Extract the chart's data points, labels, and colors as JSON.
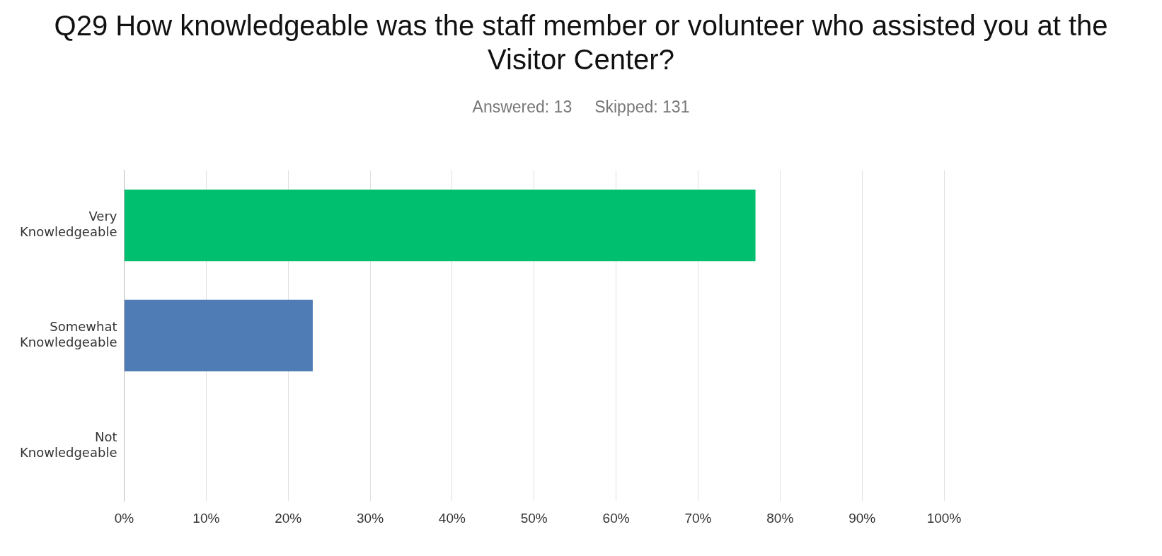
{
  "chart_data": {
    "type": "bar",
    "orientation": "horizontal",
    "title": "Q29 How knowledgeable was the staff member or volunteer who assisted you at the Visitor Center?",
    "subtitle": "Answered: 13     Skipped: 131",
    "categories": [
      "Very Knowledgeable",
      "Somewhat Knowledgeable",
      "Not Knowledgeable"
    ],
    "values": [
      77,
      23,
      0
    ],
    "colors": [
      "#00bf6f",
      "#507cb6",
      "#a3a3a3"
    ],
    "xlim": [
      0,
      100
    ],
    "xticks": [
      {
        "value": 0,
        "label": "0%"
      },
      {
        "value": 10,
        "label": "10%"
      },
      {
        "value": 20,
        "label": "20%"
      },
      {
        "value": 30,
        "label": "30%"
      },
      {
        "value": 40,
        "label": "40%"
      },
      {
        "value": 50,
        "label": "50%"
      },
      {
        "value": 60,
        "label": "60%"
      },
      {
        "value": 70,
        "label": "70%"
      },
      {
        "value": 80,
        "label": "80%"
      },
      {
        "value": 90,
        "label": "90%"
      },
      {
        "value": 100,
        "label": "100%"
      }
    ],
    "grid": "x"
  }
}
